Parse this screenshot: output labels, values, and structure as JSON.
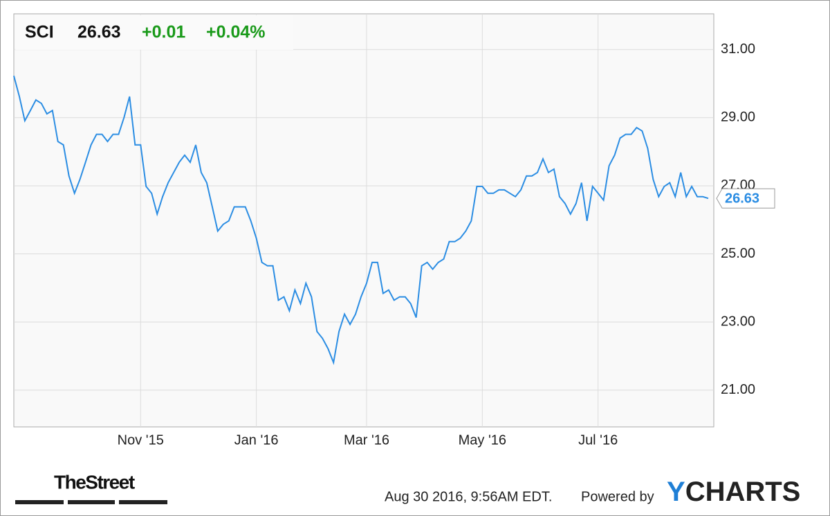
{
  "chart_data": {
    "type": "line",
    "quote": {
      "symbol": "SCI",
      "price": "26.63",
      "change": "+0.01",
      "change_percent": "+0.04%"
    },
    "categories": [
      null,
      null,
      null,
      null,
      null,
      null,
      null,
      null,
      null,
      null,
      null,
      null,
      null,
      null,
      null,
      null,
      null,
      null,
      null,
      null,
      null,
      null,
      null,
      "Nov '15",
      null,
      null,
      null,
      null,
      null,
      null,
      null,
      null,
      null,
      null,
      null,
      null,
      null,
      null,
      null,
      null,
      null,
      null,
      null,
      null,
      "Jan '16",
      null,
      null,
      null,
      null,
      null,
      null,
      null,
      null,
      null,
      null,
      null,
      null,
      null,
      null,
      null,
      null,
      null,
      null,
      null,
      "Mar '16",
      null,
      null,
      null,
      null,
      null,
      null,
      null,
      null,
      null,
      null,
      null,
      null,
      null,
      null,
      null,
      null,
      null,
      null,
      null,
      null,
      "May '16",
      null,
      null,
      null,
      null,
      null,
      null,
      null,
      null,
      null,
      null,
      null,
      null,
      null,
      null,
      null,
      null,
      null,
      null,
      null,
      null,
      "Jul '16",
      null,
      null,
      null,
      null,
      null,
      null,
      null,
      null,
      null,
      null,
      null,
      null,
      null,
      null,
      null,
      null,
      null,
      null,
      null,
      null
    ],
    "series": [
      {
        "name": "SCI",
        "color": "#2b8de3",
        "values": [
          30.23,
          29.62,
          28.91,
          29.21,
          29.52,
          29.42,
          29.11,
          29.21,
          28.3,
          28.2,
          27.29,
          26.78,
          27.19,
          27.69,
          28.2,
          28.51,
          28.51,
          28.3,
          28.51,
          28.51,
          29.01,
          29.62,
          28.2,
          28.2,
          26.98,
          26.78,
          26.17,
          26.68,
          27.09,
          27.39,
          27.69,
          27.9,
          27.69,
          28.2,
          27.39,
          27.09,
          26.38,
          25.67,
          25.87,
          25.97,
          26.38,
          26.38,
          26.38,
          25.97,
          25.46,
          24.75,
          24.65,
          24.65,
          23.64,
          23.74,
          23.33,
          23.94,
          23.54,
          24.14,
          23.74,
          22.72,
          22.52,
          22.22,
          21.81,
          22.72,
          23.23,
          22.93,
          23.23,
          23.74,
          24.14,
          24.75,
          24.75,
          23.84,
          23.94,
          23.64,
          23.74,
          23.74,
          23.54,
          23.13,
          24.65,
          24.75,
          24.55,
          24.75,
          24.85,
          25.36,
          25.36,
          25.46,
          25.67,
          25.97,
          26.98,
          26.98,
          26.78,
          26.78,
          26.88,
          26.88,
          26.78,
          26.68,
          26.88,
          27.29,
          27.29,
          27.39,
          27.79,
          27.39,
          27.49,
          26.68,
          26.48,
          26.17,
          26.48,
          27.09,
          25.97,
          26.98,
          26.78,
          26.58,
          27.59,
          27.9,
          28.4,
          28.51,
          28.51,
          28.71,
          28.61,
          28.1,
          27.19,
          26.68,
          26.98,
          27.09,
          26.68,
          27.39,
          26.68,
          26.98,
          26.68,
          26.68,
          26.63
        ]
      }
    ],
    "ylim": [
      19.92,
      32.05
    ],
    "yticks": [
      {
        "value": 21,
        "label": "21.00"
      },
      {
        "value": 23,
        "label": "23.00"
      },
      {
        "value": 25,
        "label": "25.00"
      },
      {
        "value": 27,
        "label": "27.00"
      },
      {
        "value": 29,
        "label": "29.00"
      },
      {
        "value": 31,
        "label": "31.00"
      }
    ],
    "grid": true,
    "footer": {
      "source_logo": "TheStreet",
      "timestamp": "Aug 30 2016, 9:56AM EDT.",
      "powered_by": "Powered by",
      "brand": "YCHARTS"
    }
  }
}
